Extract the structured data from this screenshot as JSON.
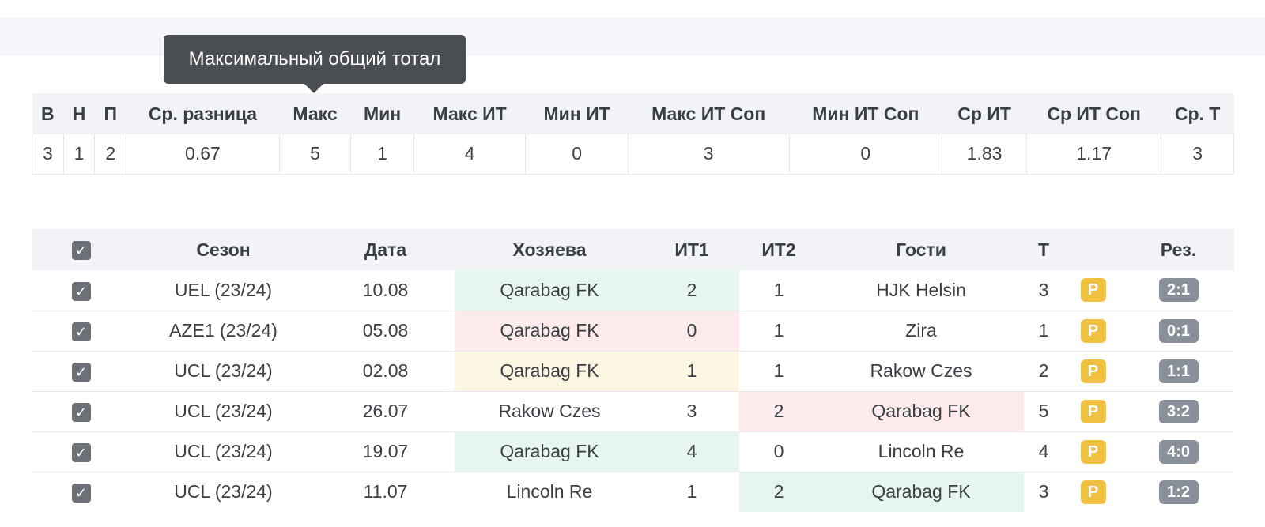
{
  "tooltip": "Максимальный общий тотал",
  "colors": {
    "win": "#e6f6ee",
    "loss": "#fcebea",
    "draw": "#fdf6e2",
    "badge_p": "#f0c040",
    "result_badge": "#8a9099"
  },
  "stats": {
    "headers": [
      "В",
      "Н",
      "П",
      "Ср. разница",
      "Макс",
      "Мин",
      "Макс ИТ",
      "Мин ИТ",
      "Макс ИТ Соп",
      "Мин ИТ Соп",
      "Ср ИТ",
      "Ср ИТ Соп",
      "Ср. Т"
    ],
    "values": [
      "3",
      "1",
      "2",
      "0.67",
      "5",
      "1",
      "4",
      "0",
      "3",
      "0",
      "1.83",
      "1.17",
      "3"
    ]
  },
  "matches": {
    "check_mark": "✓",
    "headers": {
      "season": "Сезон",
      "date": "Дата",
      "home": "Хозяева",
      "it1": "ИТ1",
      "it2": "ИТ2",
      "away": "Гости",
      "total": "Т",
      "result": "Рез."
    },
    "rows": [
      {
        "season": "UEL (23/24)",
        "date": "10.08",
        "home": "Qarabag FK",
        "it1": "2",
        "it2": "1",
        "away": "HJK Helsin",
        "total": "3",
        "badge": "P",
        "result": "2:1",
        "highlight": "home",
        "status": "win"
      },
      {
        "season": "AZE1 (23/24)",
        "date": "05.08",
        "home": "Qarabag FK",
        "it1": "0",
        "it2": "1",
        "away": "Zira",
        "total": "1",
        "badge": "P",
        "result": "0:1",
        "highlight": "home",
        "status": "loss"
      },
      {
        "season": "UCL (23/24)",
        "date": "02.08",
        "home": "Qarabag FK",
        "it1": "1",
        "it2": "1",
        "away": "Rakow Czes",
        "total": "2",
        "badge": "P",
        "result": "1:1",
        "highlight": "home",
        "status": "draw"
      },
      {
        "season": "UCL (23/24)",
        "date": "26.07",
        "home": "Rakow Czes",
        "it1": "3",
        "it2": "2",
        "away": "Qarabag FK",
        "total": "5",
        "badge": "P",
        "result": "3:2",
        "highlight": "away",
        "status": "loss"
      },
      {
        "season": "UCL (23/24)",
        "date": "19.07",
        "home": "Qarabag FK",
        "it1": "4",
        "it2": "0",
        "away": "Lincoln Re",
        "total": "4",
        "badge": "P",
        "result": "4:0",
        "highlight": "home",
        "status": "win"
      },
      {
        "season": "UCL (23/24)",
        "date": "11.07",
        "home": "Lincoln Re",
        "it1": "1",
        "it2": "2",
        "away": "Qarabag FK",
        "total": "3",
        "badge": "P",
        "result": "1:2",
        "highlight": "away",
        "status": "win"
      }
    ]
  }
}
